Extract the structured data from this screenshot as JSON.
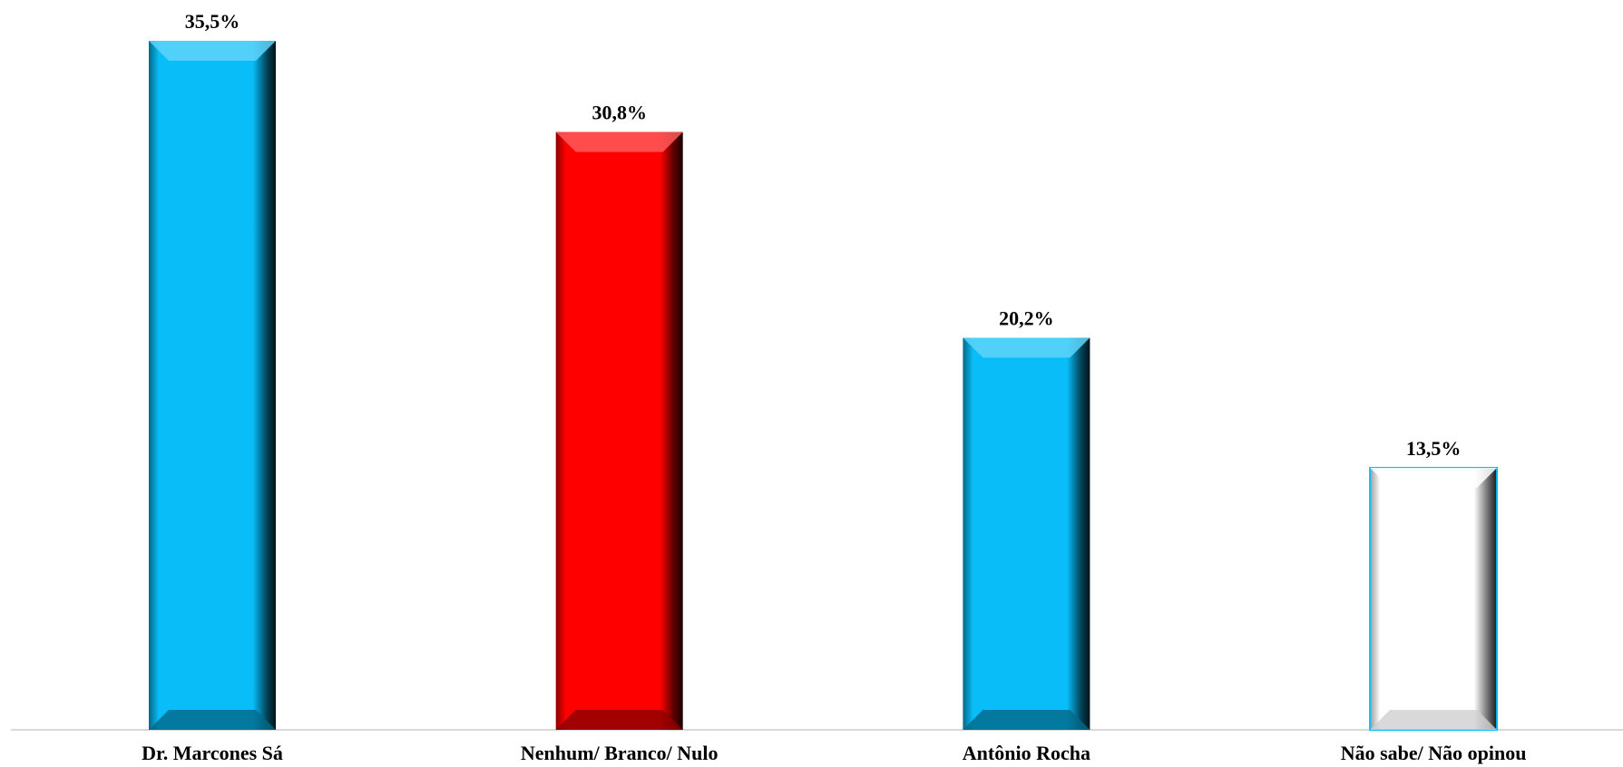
{
  "chart_data": {
    "type": "bar",
    "categories": [
      "Dr. Marcones Sá",
      "Nenhum/ Branco/ Nulo",
      "Antônio Rocha",
      "Não sabe/ Não opinou"
    ],
    "values": [
      35.5,
      30.8,
      20.2,
      13.5
    ],
    "data_labels": [
      "35,5%",
      "30,8%",
      "20,2%",
      "13,5%"
    ],
    "colors": [
      "#08BDF8",
      "#FF0000",
      "#08BDF8",
      "#FFFFFF"
    ],
    "title": "",
    "xlabel": "",
    "ylabel": "",
    "ylim": [
      0,
      35.5
    ],
    "grid": false,
    "legend": "none"
  }
}
